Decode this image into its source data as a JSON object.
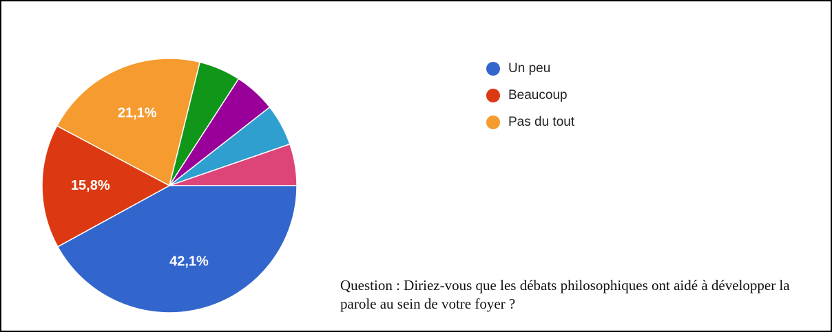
{
  "chart_data": {
    "type": "pie",
    "categories": [
      "Un peu",
      "Beaucoup",
      "Pas du tout",
      null,
      null,
      null,
      null
    ],
    "values": [
      42.1,
      15.8,
      21.1,
      5.3,
      5.3,
      5.3,
      5.3
    ],
    "value_labels": [
      "42,1%",
      "15,8%",
      "21,1%",
      null,
      null,
      null,
      null
    ],
    "colors": [
      "#3366cc",
      "#dc3912",
      "#f59b2f",
      "#109618",
      "#990099",
      "#2f9fcf",
      "#dd4477"
    ],
    "legend": "top-right",
    "annotation": "Question : Diriez-vous que les débats philosophiques ont aidé à développer la parole au sein de votre foyer ?"
  }
}
